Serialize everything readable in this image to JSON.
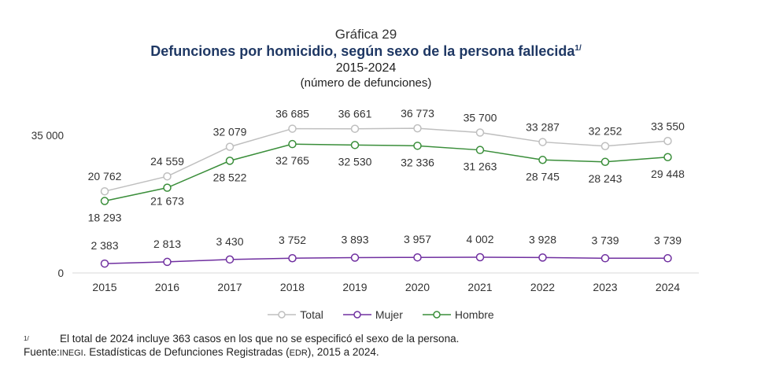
{
  "header": {
    "label": "Gráfica 29",
    "title": "Defunciones por homicidio, según sexo de la persona fallecida",
    "title_note": "1/",
    "period": "2015-2024",
    "units": "(número de defunciones)"
  },
  "chart_data": {
    "type": "line",
    "x": [
      "2015",
      "2016",
      "2017",
      "2018",
      "2019",
      "2020",
      "2021",
      "2022",
      "2023",
      "2024"
    ],
    "y_ticks": [
      0,
      35000
    ],
    "y_tick_labels": [
      "0",
      "35 000"
    ],
    "ylim": [
      0,
      40000
    ],
    "grid": false,
    "legend_position": "bottom",
    "series": [
      {
        "name": "Total",
        "color": "#bfbfbf",
        "values": [
          20762,
          24559,
          32079,
          36685,
          36661,
          36773,
          35700,
          33287,
          32252,
          33550
        ],
        "labels": [
          "20 762",
          "24 559",
          "32 079",
          "36 685",
          "36 661",
          "36 773",
          "35 700",
          "33 287",
          "32 252",
          "33 550"
        ]
      },
      {
        "name": "Mujer",
        "color": "#7030a0",
        "values": [
          2383,
          2813,
          3430,
          3752,
          3893,
          3957,
          4002,
          3928,
          3739,
          3739
        ],
        "labels": [
          "2 383",
          "2 813",
          "3 430",
          "3 752",
          "3 893",
          "3 957",
          "4 002",
          "3 928",
          "3 739",
          "3 739"
        ]
      },
      {
        "name": "Hombre",
        "color": "#3a8e3a",
        "values": [
          18293,
          21673,
          28522,
          32765,
          32530,
          32336,
          31263,
          28745,
          28243,
          29448
        ],
        "labels": [
          "18 293",
          "21 673",
          "28 522",
          "32 765",
          "32 530",
          "32 336",
          "31 263",
          "28 745",
          "28 243",
          "29 448"
        ]
      }
    ]
  },
  "notes": {
    "footnote_mark": "1/",
    "footnote": "El total de 2024 incluye 363 casos en los que no se especificó el sexo de la persona.",
    "source_label": "Fuente:",
    "source_org": "INEGI",
    "source_text_a": ". Estadísticas de Defunciones Registradas (",
    "source_abbr": "EDR",
    "source_text_b": "), 2015 a 2024."
  }
}
